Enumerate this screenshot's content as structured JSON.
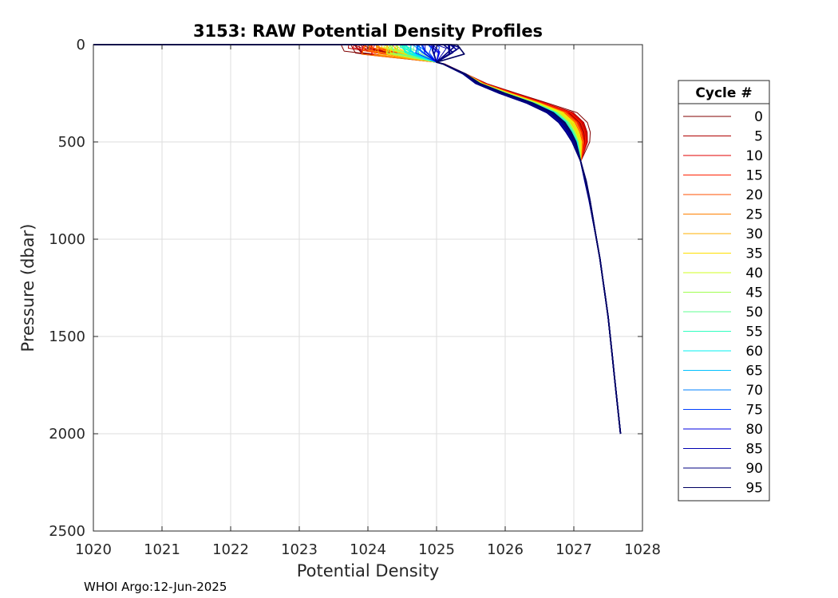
{
  "chart_data": {
    "type": "line",
    "title": "3153: RAW Potential Density Profiles",
    "xlabel": "Potential Density",
    "ylabel": "Pressure (dbar)",
    "xlim": [
      1020,
      1028
    ],
    "ylim": [
      0,
      2500
    ],
    "y_reversed": true,
    "grid": true,
    "xticks": [
      1020,
      1021,
      1022,
      1023,
      1024,
      1025,
      1026,
      1027,
      1028
    ],
    "yticks": [
      0,
      500,
      1000,
      1500,
      2000,
      2500
    ],
    "legend": {
      "title": "Cycle #",
      "placement": "outside-right",
      "entries": [
        {
          "label": "0",
          "color": "#800000"
        },
        {
          "label": "5",
          "color": "#b00000"
        },
        {
          "label": "10",
          "color": "#e00000"
        },
        {
          "label": "15",
          "color": "#ff2000"
        },
        {
          "label": "20",
          "color": "#ff5000"
        },
        {
          "label": "25",
          "color": "#ff8000"
        },
        {
          "label": "30",
          "color": "#ffb000"
        },
        {
          "label": "35",
          "color": "#ffe000"
        },
        {
          "label": "40",
          "color": "#d0ff20"
        },
        {
          "label": "45",
          "color": "#a0ff50"
        },
        {
          "label": "50",
          "color": "#60ff90"
        },
        {
          "label": "55",
          "color": "#30ffc0"
        },
        {
          "label": "60",
          "color": "#00f0f0"
        },
        {
          "label": "65",
          "color": "#00c0ff"
        },
        {
          "label": "70",
          "color": "#0080ff"
        },
        {
          "label": "75",
          "color": "#0040ff"
        },
        {
          "label": "80",
          "color": "#0000e0"
        },
        {
          "label": "85",
          "color": "#0000b0"
        },
        {
          "label": "90",
          "color": "#000080"
        },
        {
          "label": "95",
          "color": "#000060"
        }
      ]
    },
    "representative_profile": {
      "pressure": [
        0,
        30,
        60,
        90,
        100,
        150,
        200,
        250,
        300,
        350,
        400,
        450,
        500,
        600,
        700,
        800,
        900,
        1000,
        1100,
        1200,
        1300,
        1400,
        1500,
        1600,
        1700,
        1800,
        1900,
        2000
      ],
      "density": [
        1024.6,
        1024.7,
        1024.85,
        1025.0,
        1025.1,
        1025.4,
        1025.6,
        1025.95,
        1026.35,
        1026.65,
        1026.82,
        1026.92,
        1027.0,
        1027.1,
        1027.17,
        1027.23,
        1027.28,
        1027.33,
        1027.38,
        1027.42,
        1027.46,
        1027.5,
        1027.53,
        1027.56,
        1027.59,
        1027.62,
        1027.65,
        1027.68
      ]
    }
  },
  "footer": "WHOI Argo:12-Jun-2025"
}
